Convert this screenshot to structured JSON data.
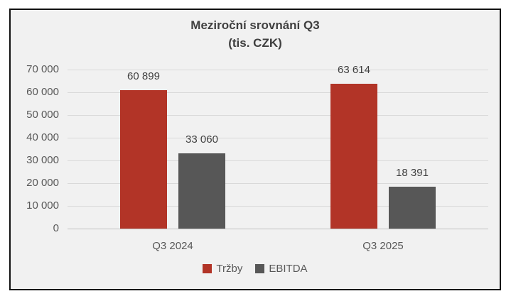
{
  "chart_data": {
    "type": "bar",
    "title": "Meziroční srovnání Q3",
    "subtitle": "(tis. CZK)",
    "categories": [
      "Q3 2024",
      "Q3 2025"
    ],
    "series": [
      {
        "name": "Tržby",
        "color": "#b23427",
        "values": [
          60899,
          63614
        ],
        "value_labels": [
          "60 899",
          "63 614"
        ]
      },
      {
        "name": "EBITDA",
        "color": "#575757",
        "values": [
          33060,
          18391
        ],
        "value_labels": [
          "33 060",
          "18 391"
        ]
      }
    ],
    "ylim": [
      0,
      70000
    ],
    "ytick_step": 10000,
    "ytick_labels": [
      "70 000",
      "60 000",
      "50 000",
      "40 000",
      "30 000",
      "20 000",
      "10 000",
      "0"
    ],
    "grid": true,
    "legend_position": "bottom"
  },
  "colors": {
    "page_bg": "#ffffff",
    "panel_bg": "#f1f1f1",
    "panel_border": "#111111",
    "gridline": "#d9d9d9",
    "axis_line": "#bfbfbf",
    "title_text": "#404040",
    "axis_text": "#595959",
    "value_text": "#404040"
  }
}
